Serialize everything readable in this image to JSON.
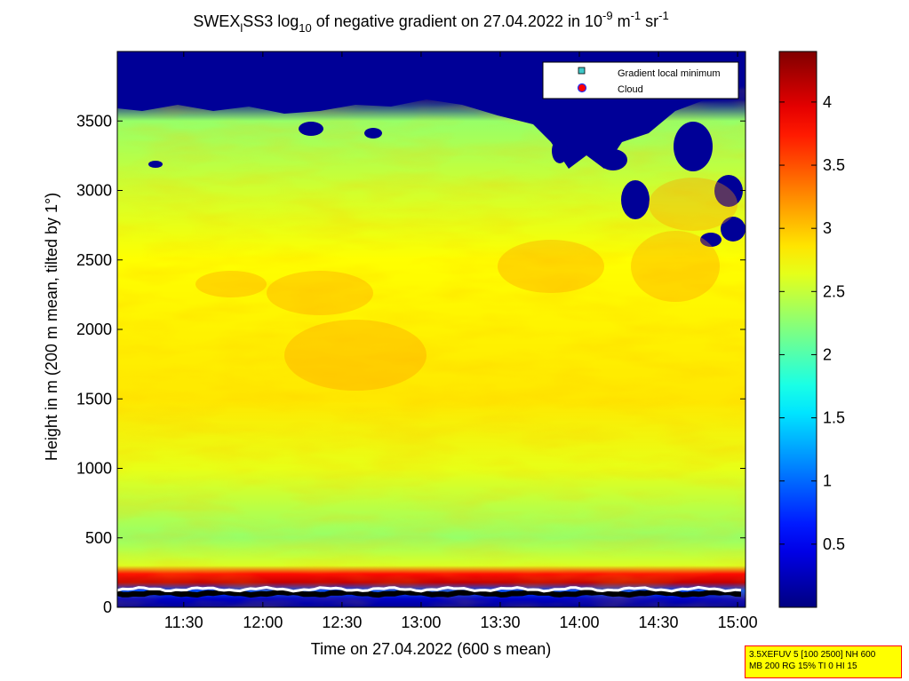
{
  "chart_data": {
    "type": "heatmap",
    "title": {
      "prefix": "SWEX",
      "prefix_sub": "l",
      "name": "SS3 log",
      "log_sub": "10",
      "middle": " of negative gradient on 27.04.2022 in 10",
      "exp1": "-9",
      "unit1": " m",
      "exp2": "-1",
      "unit2": " sr",
      "exp3": "-1"
    },
    "xlabel": "Time on 27.04.2022 (600 s mean)",
    "ylabel": "Height in m (200 m mean, tilted by 1°)",
    "x_tick_labels": [
      "11:30",
      "12:00",
      "12:30",
      "13:00",
      "13:30",
      "14:00",
      "14:30",
      "15:00"
    ],
    "x_tick_hours": [
      11.5,
      12.0,
      12.5,
      13.0,
      13.5,
      14.0,
      14.5,
      15.0
    ],
    "xlim_hours": [
      11.08,
      15.05
    ],
    "y_ticks": [
      0,
      500,
      1000,
      1500,
      2000,
      2500,
      3000,
      3500
    ],
    "ylim": [
      0,
      4000
    ],
    "colorbar": {
      "ticks": [
        0.5,
        1,
        1.5,
        2,
        2.5,
        3,
        3.5,
        4
      ],
      "tick_labels": [
        "0.5",
        "1",
        "1.5",
        "2",
        "2.5",
        "3",
        "3.5",
        "4"
      ],
      "range": [
        0,
        4.4
      ],
      "colormap": "jet"
    },
    "legend": {
      "position": "top-right",
      "entries": [
        {
          "label": "Gradient local minimum",
          "marker": "square",
          "color": "#3ec8c8"
        },
        {
          "label": "Cloud",
          "marker": "circle",
          "color": "#ff0000"
        }
      ]
    },
    "field_profile": [
      {
        "height": 0,
        "value": 0.1
      },
      {
        "height": 60,
        "value": 0.3
      },
      {
        "height": 120,
        "value": 0.9
      },
      {
        "height": 180,
        "value": 4.1
      },
      {
        "height": 240,
        "value": 3.8
      },
      {
        "height": 300,
        "value": 2.6
      },
      {
        "height": 500,
        "value": 2.3
      },
      {
        "height": 1000,
        "value": 2.65
      },
      {
        "height": 1500,
        "value": 2.85
      },
      {
        "height": 2000,
        "value": 2.8
      },
      {
        "height": 2500,
        "value": 2.75
      },
      {
        "height": 3000,
        "value": 2.55
      },
      {
        "height": 3500,
        "value": 2.3
      },
      {
        "height": 3650,
        "value": 0.1
      },
      {
        "height": 4000,
        "value": 0.1
      }
    ],
    "line_heights": {
      "gradient_local_minimum": 100,
      "cloud": 130
    },
    "grid": false
  },
  "info_box": {
    "line1": "3.5XEFUV 5 [100 2500] NH 600",
    "line2": "MB 200 RG 15% TI 0 HI 15"
  },
  "colors": {
    "background": "#ffffff",
    "info_box_bg": "#ffff00",
    "info_box_border": "#ff0000"
  }
}
